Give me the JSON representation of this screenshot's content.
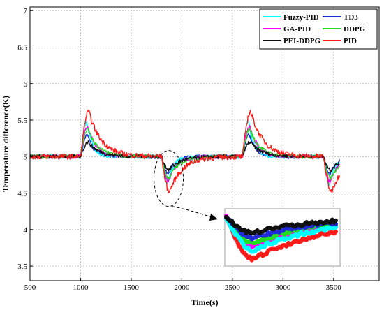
{
  "chart_data": {
    "type": "line",
    "title": "",
    "xlabel": "Time(s)",
    "ylabel": "Temperature difference(K)",
    "xlim": [
      500,
      3950
    ],
    "ylim": [
      3.3,
      7.05
    ],
    "xticks": [
      500,
      1000,
      1500,
      2000,
      2500,
      3000,
      3500
    ],
    "yticks": [
      3.5,
      4,
      4.5,
      5,
      5.5,
      6,
      6.5,
      7
    ],
    "ytick_labels": [
      "3.5",
      "4",
      "4.5",
      "5",
      "5.5",
      "6",
      "6.5",
      "7"
    ],
    "grid": true,
    "legend_position": "top-right",
    "baseline": 5.0,
    "events": [
      {
        "time": 1000,
        "direction": "up"
      },
      {
        "time": 1800,
        "direction": "down"
      },
      {
        "time": 2600,
        "direction": "up"
      },
      {
        "time": 3400,
        "direction": "down"
      }
    ],
    "series": [
      {
        "name": "Fuzzy-PID",
        "color": "#00ffff",
        "peak": 5.48,
        "trough": 4.62
      },
      {
        "name": "TD3",
        "color": "#1f2bd6",
        "peak": 5.3,
        "trough": 4.76
      },
      {
        "name": "GA-PID",
        "color": "#ff00ff",
        "peak": 5.42,
        "trough": 4.66
      },
      {
        "name": "DDPG",
        "color": "#22dd22",
        "peak": 5.38,
        "trough": 4.7
      },
      {
        "name": "PEI-DDPG",
        "color": "#111111",
        "peak": 5.2,
        "trough": 4.82
      },
      {
        "name": "PID",
        "color": "#ff1a1a",
        "peak": 5.62,
        "trough": 4.52
      }
    ],
    "annotations": [
      {
        "type": "zoom-inset",
        "target_time": 1870,
        "target_value": 4.7,
        "note": "magnified view of the dip near t = 1800 s"
      }
    ]
  }
}
